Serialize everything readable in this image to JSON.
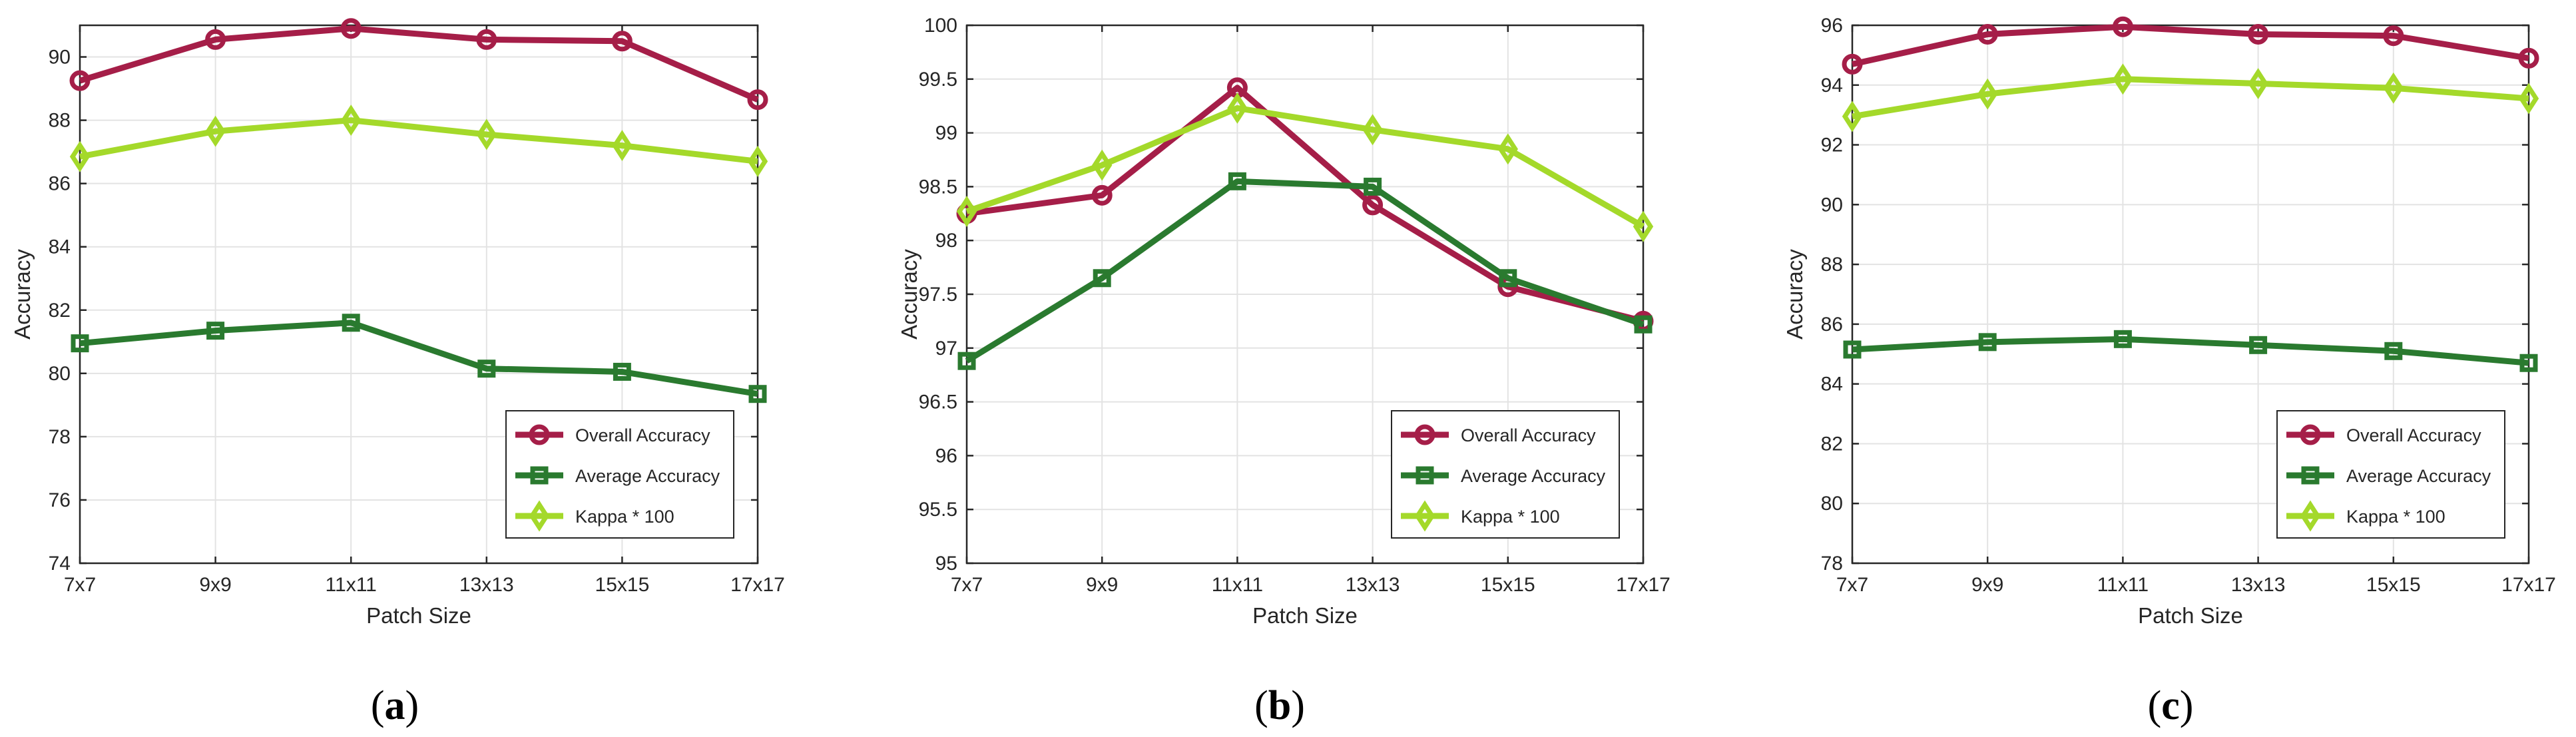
{
  "chart_data": [
    {
      "type": "line",
      "caption": "(a)",
      "caption_bold": "a",
      "xlabel": "Patch Size",
      "ylabel": "Accuracy",
      "categories": [
        "7x7",
        "9x9",
        "11x11",
        "13x13",
        "15x15",
        "17x17"
      ],
      "ylim": [
        74,
        91
      ],
      "yticks": [
        74,
        76,
        78,
        80,
        82,
        84,
        86,
        88,
        90
      ],
      "ytick_labels": [
        "74",
        "76",
        "78",
        "80",
        "82",
        "84",
        "86",
        "88",
        "90"
      ],
      "grid": true,
      "legend_position": "bottom-right",
      "series": [
        {
          "name": "Overall Accuracy",
          "marker": "circle",
          "color": "#a51e48",
          "values": [
            89.25,
            90.55,
            90.9,
            90.55,
            90.5,
            88.65
          ]
        },
        {
          "name": "Average Accuracy",
          "marker": "square",
          "color": "#2a7a2f",
          "values": [
            80.95,
            81.35,
            81.6,
            80.15,
            80.05,
            79.35
          ]
        },
        {
          "name": "Kappa * 100",
          "marker": "diamond",
          "color": "#a4d92a",
          "values": [
            86.85,
            87.65,
            88.0,
            87.55,
            87.2,
            86.7
          ]
        }
      ]
    },
    {
      "type": "line",
      "caption": "(b)",
      "caption_bold": "b",
      "xlabel": "Patch Size",
      "ylabel": "Accuracy",
      "categories": [
        "7x7",
        "9x9",
        "11x11",
        "13x13",
        "15x15",
        "17x17"
      ],
      "ylim": [
        95,
        100
      ],
      "yticks": [
        95,
        95.5,
        96,
        96.5,
        97,
        97.5,
        98,
        98.5,
        99,
        99.5,
        100
      ],
      "ytick_labels": [
        "95",
        "95.5",
        "96",
        "96.5",
        "97",
        "97.5",
        "98",
        "98.5",
        "99",
        "99.5",
        "100"
      ],
      "grid": true,
      "legend_position": "bottom-right",
      "series": [
        {
          "name": "Overall Accuracy",
          "marker": "circle",
          "color": "#a51e48",
          "values": [
            98.25,
            98.42,
            99.42,
            98.33,
            97.57,
            97.25
          ]
        },
        {
          "name": "Average Accuracy",
          "marker": "square",
          "color": "#2a7a2f",
          "values": [
            96.88,
            97.65,
            98.55,
            98.5,
            97.65,
            97.22
          ]
        },
        {
          "name": "Kappa * 100",
          "marker": "diamond",
          "color": "#a4d92a",
          "values": [
            98.27,
            98.7,
            99.23,
            99.03,
            98.85,
            98.13
          ]
        }
      ]
    },
    {
      "type": "line",
      "caption": "(c)",
      "caption_bold": "c",
      "xlabel": "Patch Size",
      "ylabel": "Accuracy",
      "categories": [
        "7x7",
        "9x9",
        "11x11",
        "13x13",
        "15x15",
        "17x17"
      ],
      "ylim": [
        78,
        96
      ],
      "yticks": [
        78,
        80,
        82,
        84,
        86,
        88,
        90,
        92,
        94,
        96
      ],
      "ytick_labels": [
        "78",
        "80",
        "82",
        "84",
        "86",
        "88",
        "90",
        "92",
        "94",
        "96"
      ],
      "grid": true,
      "legend_position": "bottom-right",
      "series": [
        {
          "name": "Overall Accuracy",
          "marker": "circle",
          "color": "#a51e48",
          "values": [
            94.7,
            95.7,
            95.95,
            95.7,
            95.65,
            94.9
          ]
        },
        {
          "name": "Average Accuracy",
          "marker": "square",
          "color": "#2a7a2f",
          "values": [
            85.15,
            85.4,
            85.5,
            85.3,
            85.1,
            84.7
          ]
        },
        {
          "name": "Kappa * 100",
          "marker": "diamond",
          "color": "#a4d92a",
          "values": [
            92.95,
            93.7,
            94.2,
            94.05,
            93.9,
            93.55
          ]
        }
      ]
    }
  ]
}
